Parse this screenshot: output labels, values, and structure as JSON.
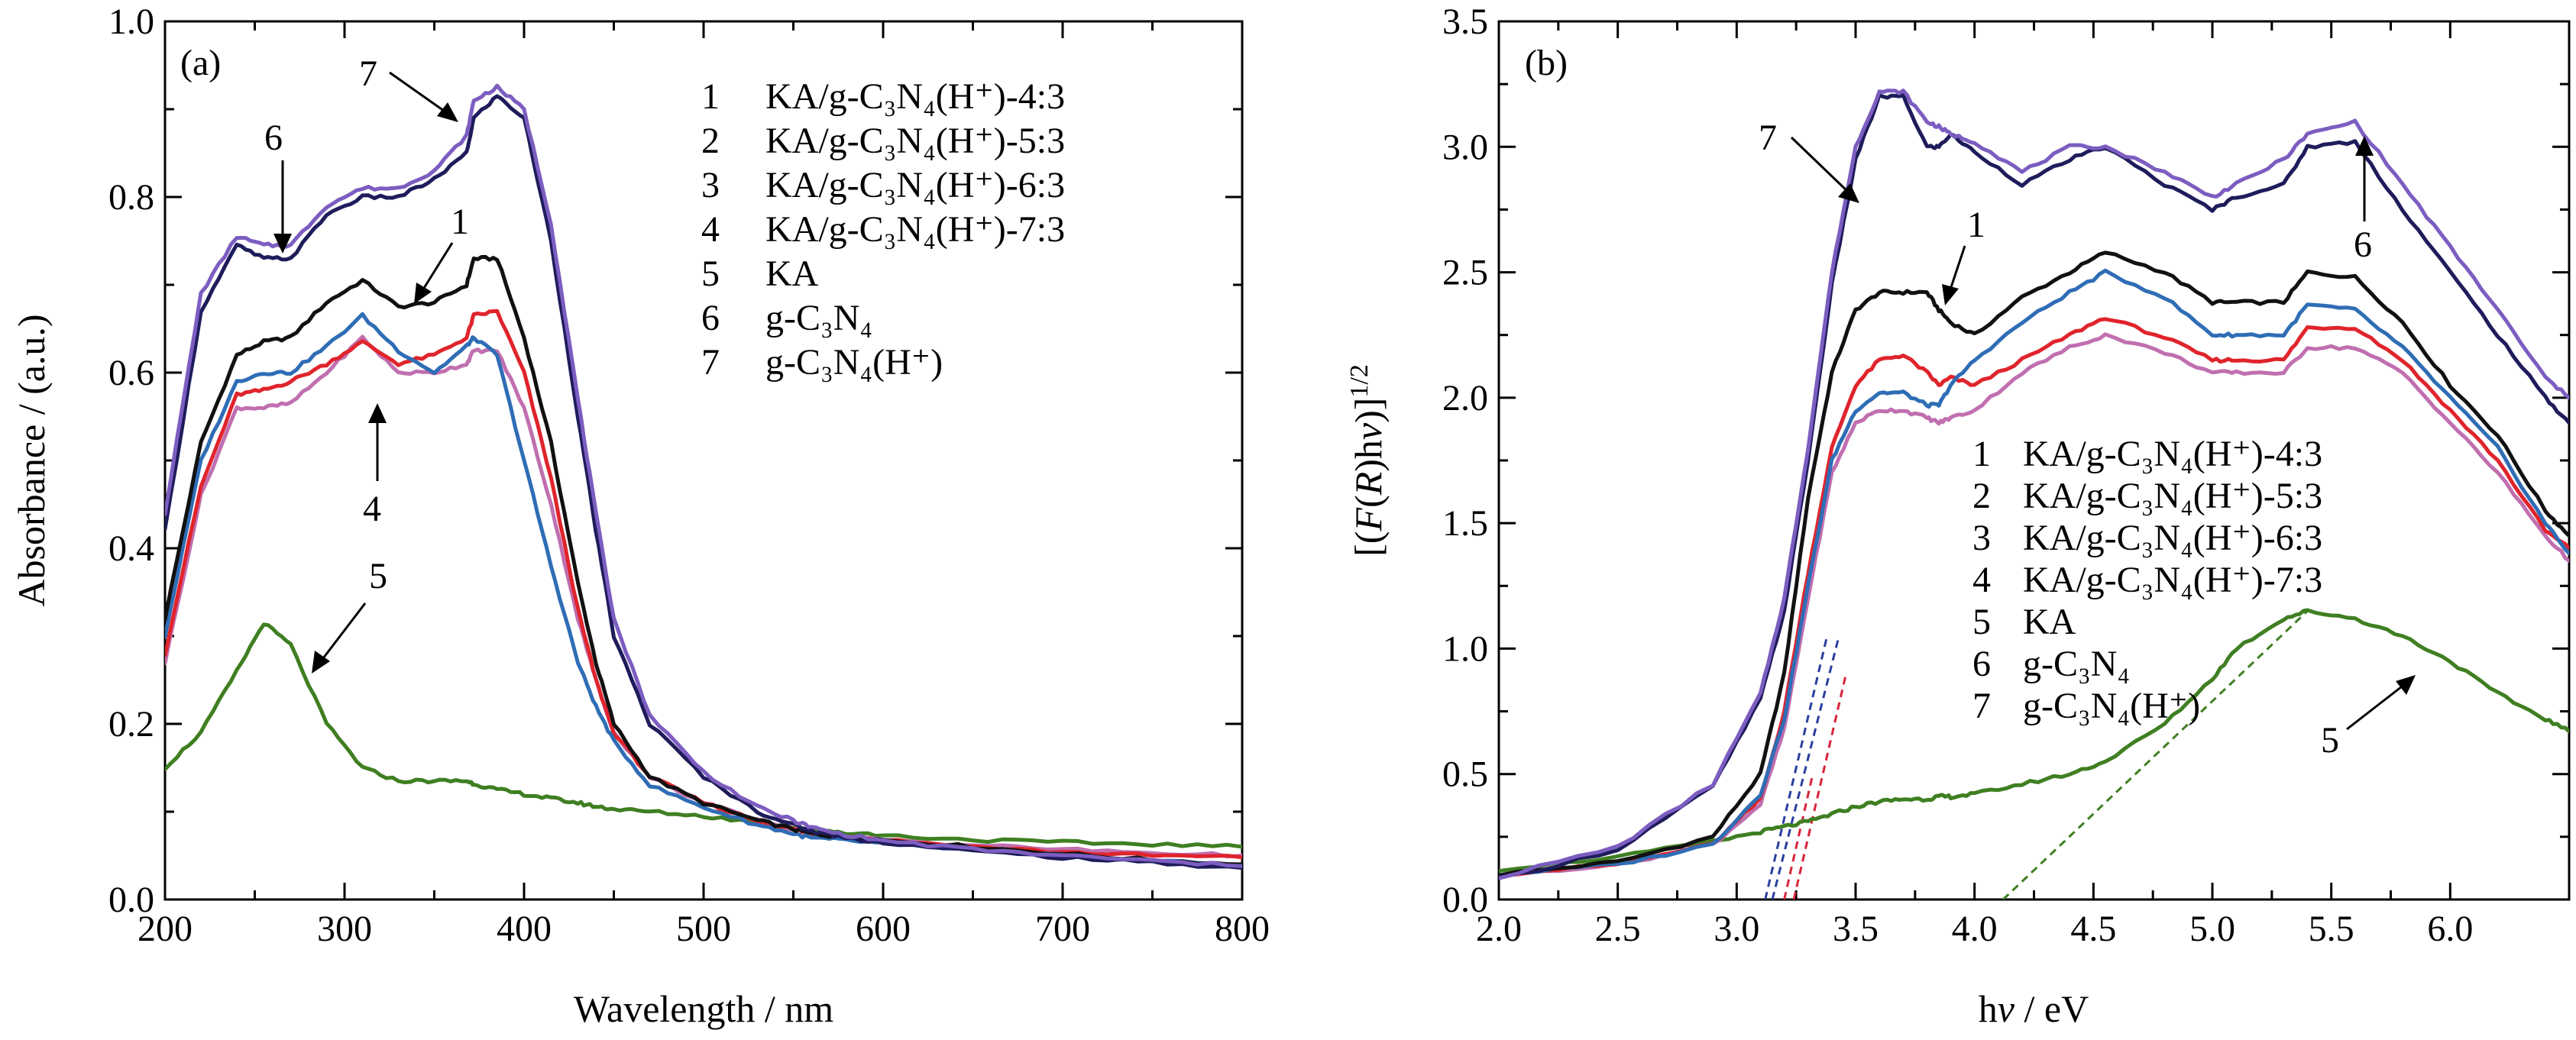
{
  "colors": {
    "s1": "#111111",
    "s2": "#e0242c",
    "s3": "#2f6db5",
    "s4": "#c06fb0",
    "s5": "#3f7f22",
    "s6": "#1f1c5c",
    "s7": "#7c5dc0",
    "fit_blue": "#2b3f9e",
    "fit_red": "#d8243a",
    "fit_green": "#3f7f22"
  },
  "chart_data": [
    {
      "type": "line",
      "panel_label": "(a)",
      "xlabel": "Wavelength / nm",
      "ylabel": "Absorbance / (a.u.)",
      "xlim": [
        200,
        800
      ],
      "ylim": [
        0.0,
        1.0
      ],
      "xticks": [
        "200",
        "300",
        "400",
        "500",
        "600",
        "700",
        "800"
      ],
      "yticks": [
        "0.0",
        "0.2",
        "0.4",
        "0.6",
        "0.8",
        "1.0"
      ],
      "legend_placement": "top-right",
      "legend": [
        {
          "num": "1",
          "text": "KA/g-C₃N₄(H⁺)-4:3"
        },
        {
          "num": "2",
          "text": "KA/g-C₃N₄(H⁺)-5:3"
        },
        {
          "num": "3",
          "text": "KA/g-C₃N₄(H⁺)-6:3"
        },
        {
          "num": "4",
          "text": "KA/g-C₃N₄(H⁺)-7:3"
        },
        {
          "num": "5",
          "text": "KA"
        },
        {
          "num": "6",
          "text": "g-C₃N₄"
        },
        {
          "num": "7",
          "text": "g-C₃N₄(H⁺)"
        }
      ],
      "annotations": [
        "7",
        "6",
        "1",
        "4",
        "5"
      ],
      "x": [
        200,
        220,
        240,
        255,
        270,
        290,
        310,
        330,
        350,
        368,
        372,
        385,
        400,
        415,
        430,
        440,
        450,
        470,
        500,
        530,
        550,
        560,
        575,
        600,
        650,
        700,
        750,
        800
      ],
      "series": [
        {
          "id": "1",
          "values": [
            0.32,
            0.52,
            0.62,
            0.635,
            0.64,
            0.68,
            0.705,
            0.675,
            0.68,
            0.7,
            0.73,
            0.73,
            0.64,
            0.52,
            0.36,
            0.27,
            0.2,
            0.14,
            0.11,
            0.09,
            0.08,
            0.075,
            0.072,
            0.068,
            0.06,
            0.052,
            0.045,
            0.04
          ]
        },
        {
          "id": "2",
          "values": [
            0.28,
            0.47,
            0.575,
            0.58,
            0.59,
            0.61,
            0.635,
            0.61,
            0.62,
            0.64,
            0.665,
            0.67,
            0.6,
            0.48,
            0.33,
            0.25,
            0.19,
            0.14,
            0.11,
            0.09,
            0.08,
            0.075,
            0.072,
            0.068,
            0.06,
            0.054,
            0.05,
            0.048
          ]
        },
        {
          "id": "3",
          "values": [
            0.3,
            0.5,
            0.59,
            0.6,
            0.6,
            0.63,
            0.665,
            0.625,
            0.6,
            0.63,
            0.64,
            0.62,
            0.5,
            0.38,
            0.27,
            0.22,
            0.18,
            0.13,
            0.105,
            0.085,
            0.075,
            0.07,
            0.068,
            0.064,
            0.056,
            0.05,
            0.044,
            0.04
          ]
        },
        {
          "id": "4",
          "values": [
            0.27,
            0.46,
            0.56,
            0.56,
            0.565,
            0.6,
            0.64,
            0.6,
            0.6,
            0.61,
            0.625,
            0.625,
            0.56,
            0.45,
            0.32,
            0.25,
            0.19,
            0.14,
            0.11,
            0.09,
            0.08,
            0.075,
            0.072,
            0.068,
            0.062,
            0.057,
            0.053,
            0.05
          ]
        },
        {
          "id": "5",
          "values": [
            0.15,
            0.19,
            0.26,
            0.315,
            0.29,
            0.2,
            0.15,
            0.135,
            0.135,
            0.135,
            0.132,
            0.125,
            0.12,
            0.115,
            0.11,
            0.106,
            0.103,
            0.1,
            0.095,
            0.088,
            0.083,
            0.08,
            0.077,
            0.073,
            0.068,
            0.065,
            0.063,
            0.06
          ]
        },
        {
          "id": "6",
          "values": [
            0.42,
            0.67,
            0.745,
            0.73,
            0.73,
            0.78,
            0.8,
            0.8,
            0.82,
            0.85,
            0.89,
            0.915,
            0.89,
            0.75,
            0.55,
            0.42,
            0.3,
            0.2,
            0.14,
            0.1,
            0.085,
            0.078,
            0.072,
            0.065,
            0.055,
            0.048,
            0.042,
            0.036
          ]
        },
        {
          "id": "7",
          "values": [
            0.44,
            0.69,
            0.755,
            0.745,
            0.745,
            0.79,
            0.81,
            0.81,
            0.83,
            0.87,
            0.91,
            0.925,
            0.9,
            0.77,
            0.57,
            0.44,
            0.32,
            0.21,
            0.145,
            0.105,
            0.09,
            0.082,
            0.075,
            0.067,
            0.057,
            0.05,
            0.044,
            0.038
          ]
        }
      ]
    },
    {
      "type": "line",
      "panel_label": "(b)",
      "xlabel": "hv / eV",
      "ylabel": "[(F(R)hv)]^1/2",
      "xlim": [
        2.0,
        6.5
      ],
      "ylim": [
        0.0,
        3.5
      ],
      "xticks": [
        "2.0",
        "2.5",
        "3.0",
        "3.5",
        "4.0",
        "4.5",
        "5.0",
        "5.5",
        "6.0"
      ],
      "yticks": [
        "0.0",
        "0.5",
        "1.0",
        "1.5",
        "2.0",
        "2.5",
        "3.0",
        "3.5"
      ],
      "legend_placement": "center",
      "legend": [
        {
          "num": "1",
          "text": "KA/g-C₃N₄(H⁺)-4:3"
        },
        {
          "num": "2",
          "text": "KA/g-C₃N₄(H⁺)-5:3"
        },
        {
          "num": "3",
          "text": "KA/g-C₃N₄(H⁺)-6:3"
        },
        {
          "num": "4",
          "text": "KA/g-C₃N₄(H⁺)-7:3"
        },
        {
          "num": "5",
          "text": "KA"
        },
        {
          "num": "6",
          "text": "g-C₃N₄"
        },
        {
          "num": "7",
          "text": "g-C₃N₄(H⁺)"
        }
      ],
      "annotations": [
        "7",
        "1",
        "6",
        "5"
      ],
      "x": [
        2.0,
        2.5,
        2.9,
        3.1,
        3.2,
        3.3,
        3.4,
        3.5,
        3.6,
        3.7,
        3.8,
        3.85,
        3.9,
        4.0,
        4.2,
        4.4,
        4.55,
        4.8,
        5.0,
        5.1,
        5.3,
        5.4,
        5.6,
        5.8,
        6.0,
        6.2,
        6.4,
        6.5
      ],
      "series": [
        {
          "id": "1",
          "values": [
            0.1,
            0.15,
            0.25,
            0.5,
            0.9,
            1.6,
            2.1,
            2.35,
            2.42,
            2.42,
            2.42,
            2.35,
            2.3,
            2.25,
            2.4,
            2.5,
            2.58,
            2.5,
            2.38,
            2.38,
            2.38,
            2.5,
            2.48,
            2.3,
            2.05,
            1.85,
            1.55,
            1.45
          ]
        },
        {
          "id": "2",
          "values": [
            0.1,
            0.14,
            0.22,
            0.4,
            0.75,
            1.3,
            1.8,
            2.05,
            2.15,
            2.17,
            2.1,
            2.05,
            2.08,
            2.05,
            2.15,
            2.25,
            2.32,
            2.24,
            2.15,
            2.15,
            2.15,
            2.28,
            2.28,
            2.15,
            1.95,
            1.75,
            1.47,
            1.4
          ]
        },
        {
          "id": "3",
          "values": [
            0.1,
            0.14,
            0.22,
            0.42,
            0.72,
            1.25,
            1.75,
            1.95,
            2.02,
            2.02,
            1.97,
            1.97,
            2.05,
            2.15,
            2.3,
            2.42,
            2.5,
            2.4,
            2.25,
            2.25,
            2.25,
            2.37,
            2.35,
            2.2,
            2.0,
            1.8,
            1.5,
            1.38
          ]
        },
        {
          "id": "4",
          "values": [
            0.1,
            0.14,
            0.22,
            0.38,
            0.68,
            1.2,
            1.7,
            1.9,
            1.95,
            1.95,
            1.92,
            1.9,
            1.92,
            1.95,
            2.1,
            2.2,
            2.25,
            2.18,
            2.1,
            2.1,
            2.1,
            2.2,
            2.2,
            2.1,
            1.9,
            1.7,
            1.45,
            1.35
          ]
        },
        {
          "id": "5",
          "values": [
            0.12,
            0.17,
            0.23,
            0.27,
            0.29,
            0.31,
            0.34,
            0.37,
            0.39,
            0.4,
            0.4,
            0.41,
            0.41,
            0.42,
            0.46,
            0.5,
            0.55,
            0.7,
            0.88,
            1.0,
            1.12,
            1.15,
            1.12,
            1.05,
            0.95,
            0.82,
            0.72,
            0.67
          ]
        },
        {
          "id": "6",
          "values": [
            0.08,
            0.2,
            0.45,
            0.8,
            1.15,
            1.75,
            2.45,
            2.95,
            3.2,
            3.2,
            3.0,
            3.0,
            3.05,
            2.98,
            2.85,
            2.95,
            3.0,
            2.85,
            2.75,
            2.8,
            2.85,
            3.0,
            3.02,
            2.75,
            2.5,
            2.25,
            2.0,
            1.9
          ]
        },
        {
          "id": "7",
          "values": [
            0.09,
            0.21,
            0.46,
            0.82,
            1.2,
            1.8,
            2.5,
            3.0,
            3.22,
            3.22,
            3.1,
            3.08,
            3.05,
            3.02,
            2.9,
            3.0,
            3.0,
            2.9,
            2.8,
            2.85,
            2.95,
            3.05,
            3.1,
            2.85,
            2.6,
            2.35,
            2.08,
            2.0
          ]
        }
      ],
      "fit_lines": [
        {
          "x": [
            3.12,
            3.38
          ],
          "y": [
            0.0,
            1.05
          ]
        },
        {
          "x": [
            3.15,
            3.43
          ],
          "y": [
            0.0,
            1.05
          ]
        },
        {
          "x": [
            3.2,
            3.32
          ],
          "y": [
            0.0,
            0.5
          ]
        },
        {
          "x": [
            3.24,
            3.46
          ],
          "y": [
            0.0,
            0.9
          ]
        },
        {
          "x": [
            4.12,
            5.4
          ],
          "y": [
            0.0,
            1.15
          ]
        }
      ]
    }
  ]
}
